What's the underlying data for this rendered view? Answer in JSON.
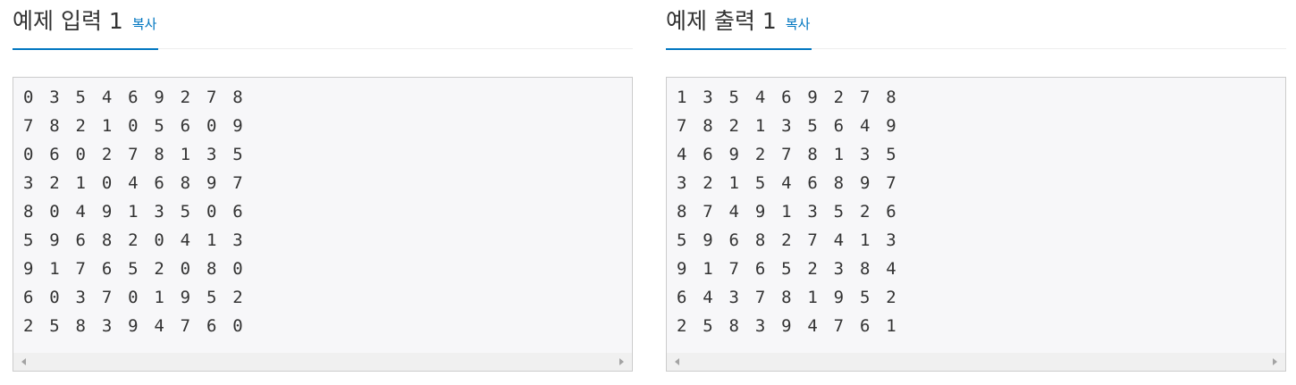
{
  "input_panel": {
    "title": "예제 입력 1",
    "copy_label": "복사",
    "lines": [
      "0 3 5 4 6 9 2 7 8",
      "7 8 2 1 0 5 6 0 9",
      "0 6 0 2 7 8 1 3 5",
      "3 2 1 0 4 6 8 9 7",
      "8 0 4 9 1 3 5 0 6",
      "5 9 6 8 2 0 4 1 3",
      "9 1 7 6 5 2 0 8 0",
      "6 0 3 7 0 1 9 5 2",
      "2 5 8 3 9 4 7 6 0"
    ]
  },
  "output_panel": {
    "title": "예제 출력 1",
    "copy_label": "복사",
    "lines": [
      "1 3 5 4 6 9 2 7 8",
      "7 8 2 1 3 5 6 4 9",
      "4 6 9 2 7 8 1 3 5",
      "3 2 1 5 4 6 8 9 7",
      "8 7 4 9 1 3 5 2 6",
      "5 9 6 8 2 7 4 1 3",
      "9 1 7 6 5 2 3 8 4",
      "6 4 3 7 8 1 9 5 2",
      "2 5 8 3 9 4 7 6 1"
    ]
  },
  "colors": {
    "accent": "#0076c0",
    "box_background": "#f7f7f9",
    "box_border": "#cccccc",
    "text": "#333333"
  },
  "icons": {
    "scroll_left": "scroll-left-arrow-icon",
    "scroll_right": "scroll-right-arrow-icon"
  }
}
